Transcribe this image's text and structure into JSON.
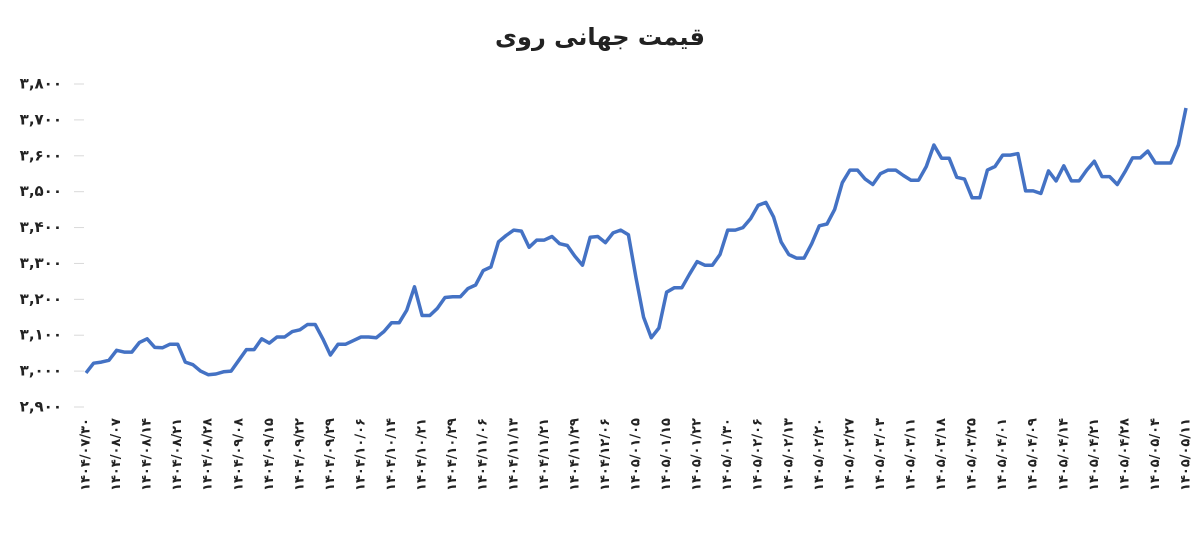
{
  "chart_data": {
    "type": "line",
    "title": "قیمت جهانی روی",
    "color": "#4472c4",
    "categories": [
      "۱۴۰۴/۰۷/۳۰",
      null,
      null,
      null,
      "۱۴۰۴/۰۸/۰۷",
      null,
      null,
      null,
      "۱۴۰۴/۰۸/۱۴",
      null,
      null,
      null,
      "۱۴۰۴/۰۸/۲۱",
      null,
      null,
      null,
      "۱۴۰۴/۰۸/۲۸",
      null,
      null,
      null,
      "۱۴۰۴/۰۹/۰۸",
      null,
      null,
      null,
      "۱۴۰۴/۰۹/۱۵",
      null,
      null,
      null,
      "۱۴۰۴/۰۹/۲۲",
      null,
      null,
      null,
      "۱۴۰۴/۰۹/۲۹",
      null,
      null,
      null,
      "۱۴۰۴/۱۰/۰۶",
      null,
      null,
      null,
      "۱۴۰۴/۱۰/۱۴",
      null,
      null,
      null,
      "۱۴۰۴/۱۰/۲۱",
      null,
      null,
      null,
      "۱۴۰۴/۱۰/۲۹",
      null,
      null,
      null,
      "۱۴۰۴/۱۱/۰۶",
      null,
      null,
      null,
      "۱۴۰۴/۱۱/۱۳",
      null,
      null,
      null,
      "۱۴۰۴/۱۱/۲۱",
      null,
      null,
      null,
      "۱۴۰۴/۱۱/۲۹",
      null,
      null,
      null,
      "۱۴۰۴/۱۲/۰۶",
      null,
      null,
      null,
      "۱۴۰۵/۰۱/۰۵",
      null,
      null,
      null,
      "۱۴۰۵/۰۱/۱۵",
      null,
      null,
      null,
      "۱۴۰۵/۰۱/۲۲",
      null,
      null,
      null,
      "۱۴۰۵/۰۱/۳۰",
      null,
      null,
      null,
      "۱۴۰۵/۰۲/۰۶",
      null,
      null,
      null,
      "۱۴۰۵/۰۲/۱۳",
      null,
      null,
      null,
      "۱۴۰۵/۰۲/۲۰",
      null,
      null,
      null,
      "۱۴۰۵/۰۲/۲۷",
      null,
      null,
      null,
      "۱۴۰۵/۰۳/۰۳",
      null,
      null,
      null,
      "۱۴۰۵/۰۳/۱۱",
      null,
      null,
      null,
      "۱۴۰۵/۰۳/۱۸",
      null,
      null,
      null,
      "۱۴۰۵/۰۳/۲۵",
      null,
      null,
      null,
      "۱۴۰۵/۰۴/۰۱",
      null,
      null,
      null,
      "۱۴۰۵/۰۴/۰۹",
      null,
      null,
      null,
      "۱۴۰۵/۰۴/۱۴",
      null,
      null,
      null,
      "۱۴۰۵/۰۴/۲۱",
      null,
      null,
      null,
      "۱۴۰۵/۰۴/۲۸",
      null,
      null,
      null,
      "۱۴۰۵/۰۵/۰۴",
      null,
      null,
      null,
      "۱۴۰۵/۰۵/۱۱"
    ],
    "values": [
      2995,
      3022,
      3025,
      3030,
      3058,
      3053,
      3053,
      3080,
      3090,
      3066,
      3065,
      3075,
      3075,
      3025,
      3018,
      3000,
      2990,
      2992,
      2998,
      3000,
      3030,
      3060,
      3060,
      3090,
      3078,
      3095,
      3095,
      3110,
      3115,
      3130,
      3130,
      3090,
      3045,
      3075,
      3075,
      3085,
      3095,
      3095,
      3093,
      3110,
      3135,
      3135,
      3170,
      3235,
      3155,
      3155,
      3175,
      3205,
      3207,
      3207,
      3230,
      3240,
      3280,
      3290,
      3360,
      3378,
      3393,
      3390,
      3345,
      3365,
      3365,
      3375,
      3355,
      3350,
      3320,
      3295,
      3373,
      3375,
      3358,
      3385,
      3393,
      3380,
      3260,
      3150,
      3093,
      3120,
      3220,
      3232,
      3232,
      3270,
      3305,
      3295,
      3295,
      3325,
      3393,
      3393,
      3400,
      3425,
      3462,
      3470,
      3430,
      3360,
      3325,
      3315,
      3315,
      3355,
      3405,
      3410,
      3450,
      3525,
      3560,
      3560,
      3535,
      3520,
      3550,
      3560,
      3560,
      3545,
      3532,
      3532,
      3570,
      3630,
      3593,
      3593,
      3540,
      3535,
      3483,
      3483,
      3560,
      3570,
      3602,
      3602,
      3606,
      3502,
      3502,
      3495,
      3558,
      3530,
      3572,
      3530,
      3530,
      3560,
      3585,
      3542,
      3542,
      3520,
      3555,
      3594,
      3594,
      3613,
      3580,
      3580,
      3580,
      3630,
      3733
    ],
    "ylim": [
      2900,
      3800
    ],
    "yticks": [
      {
        "value": 2900,
        "label": "۲,۹۰۰"
      },
      {
        "value": 3000,
        "label": "۳,۰۰۰"
      },
      {
        "value": 3100,
        "label": "۳,۱۰۰"
      },
      {
        "value": 3200,
        "label": "۳,۲۰۰"
      },
      {
        "value": 3300,
        "label": "۳,۳۰۰"
      },
      {
        "value": 3400,
        "label": "۳,۴۰۰"
      },
      {
        "value": 3500,
        "label": "۳,۵۰۰"
      },
      {
        "value": 3600,
        "label": "۳,۶۰۰"
      },
      {
        "value": 3700,
        "label": "۳,۷۰۰"
      },
      {
        "value": 3800,
        "label": "۳,۸۰۰"
      }
    ]
  }
}
